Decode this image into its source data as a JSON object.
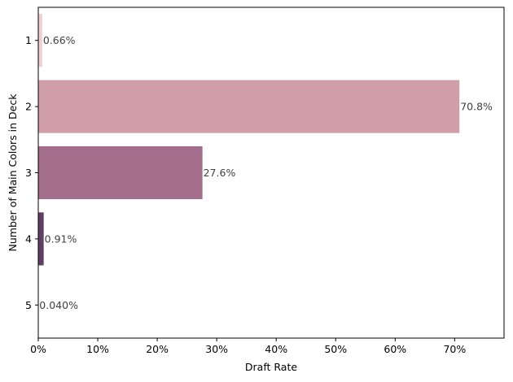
{
  "chart_data": {
    "type": "bar",
    "orientation": "horizontal",
    "categories": [
      "1",
      "2",
      "3",
      "4",
      "5"
    ],
    "values": [
      0.66,
      70.8,
      27.6,
      0.91,
      0.04
    ],
    "value_labels": [
      "0.66%",
      "70.8%",
      "27.6%",
      "0.91%",
      "0.040%"
    ],
    "bar_colors": [
      "#efcfcf",
      "#cf9ea9",
      "#a26e8c",
      "#5f3f64",
      "#2a1b35"
    ],
    "title": "",
    "xlabel": "Draft Rate",
    "ylabel": "Number of Main Colors in Deck",
    "xlim": [
      0,
      78.3
    ],
    "xticks": [
      0,
      10,
      20,
      30,
      40,
      50,
      60,
      70
    ],
    "xtick_labels": [
      "0%",
      "10%",
      "20%",
      "30%",
      "40%",
      "50%",
      "60%",
      "70%"
    ],
    "grid": false,
    "legend": "none"
  }
}
